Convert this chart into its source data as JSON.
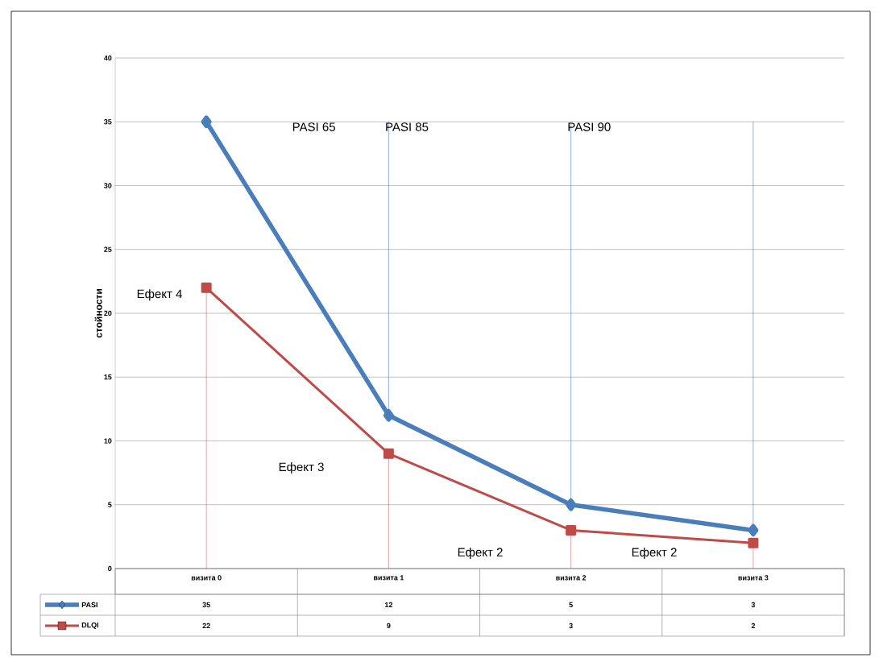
{
  "chart_data": {
    "type": "line",
    "ylabel": "стойности",
    "categories": [
      "визита 0",
      "визита 1",
      "визита 2",
      "визита 3"
    ],
    "series": [
      {
        "name": "PASI",
        "color": "#4a7ebb",
        "marker": "diamond",
        "values": [
          35,
          12,
          5,
          3
        ],
        "value_labels": [
          "35",
          "12",
          "5",
          "3"
        ]
      },
      {
        "name": "DLQI",
        "color": "#be4b48",
        "marker": "square",
        "values": [
          22,
          9,
          3,
          2
        ],
        "value_labels": [
          "22",
          "9",
          "3",
          "2"
        ]
      }
    ],
    "ylim": [
      0,
      40
    ],
    "yticks": [
      0,
      5,
      10,
      15,
      20,
      25,
      30,
      35,
      40
    ],
    "grid": "y",
    "legend": "bottom left",
    "line_style": "solid",
    "ref_lines": [
      {
        "axis": "x",
        "value": "визита 1",
        "color": "#4a7ebb"
      },
      {
        "axis": "x",
        "value": "визита 2",
        "color": "#4a7ebb"
      },
      {
        "axis": "x",
        "value": "визита 3",
        "color": "#4a7ebb"
      }
    ],
    "annotations": [
      "PASI 65",
      "PASI 85",
      "PASI 90",
      "Ефект 4",
      "Ефект 3",
      "Ефект 2",
      "Ефект 2"
    ]
  }
}
